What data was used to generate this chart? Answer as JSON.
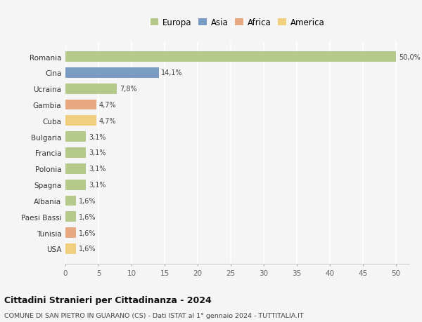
{
  "countries": [
    "Romania",
    "Cina",
    "Ucraina",
    "Gambia",
    "Cuba",
    "Bulgaria",
    "Francia",
    "Polonia",
    "Spagna",
    "Albania",
    "Paesi Bassi",
    "Tunisia",
    "USA"
  ],
  "values": [
    50.0,
    14.1,
    7.8,
    4.7,
    4.7,
    3.1,
    3.1,
    3.1,
    3.1,
    1.6,
    1.6,
    1.6,
    1.6
  ],
  "labels": [
    "50,0%",
    "14,1%",
    "7,8%",
    "4,7%",
    "4,7%",
    "3,1%",
    "3,1%",
    "3,1%",
    "3,1%",
    "1,6%",
    "1,6%",
    "1,6%",
    "1,6%"
  ],
  "continents": [
    "Europa",
    "Asia",
    "Europa",
    "Africa",
    "America",
    "Europa",
    "Europa",
    "Europa",
    "Europa",
    "Europa",
    "Europa",
    "Africa",
    "America"
  ],
  "continent_colors": {
    "Europa": "#b5c98a",
    "Asia": "#7b9cc2",
    "Africa": "#e8a882",
    "America": "#f0d080"
  },
  "legend_order": [
    "Europa",
    "Asia",
    "Africa",
    "America"
  ],
  "title": "Cittadini Stranieri per Cittadinanza - 2024",
  "subtitle": "COMUNE DI SAN PIETRO IN GUARANO (CS) - Dati ISTAT al 1° gennaio 2024 - TUTTITALIA.IT",
  "xlim": [
    0,
    52
  ],
  "xticks": [
    0,
    5,
    10,
    15,
    20,
    25,
    30,
    35,
    40,
    45,
    50
  ],
  "background_color": "#f5f5f5",
  "grid_color": "#ffffff",
  "bar_height": 0.65
}
